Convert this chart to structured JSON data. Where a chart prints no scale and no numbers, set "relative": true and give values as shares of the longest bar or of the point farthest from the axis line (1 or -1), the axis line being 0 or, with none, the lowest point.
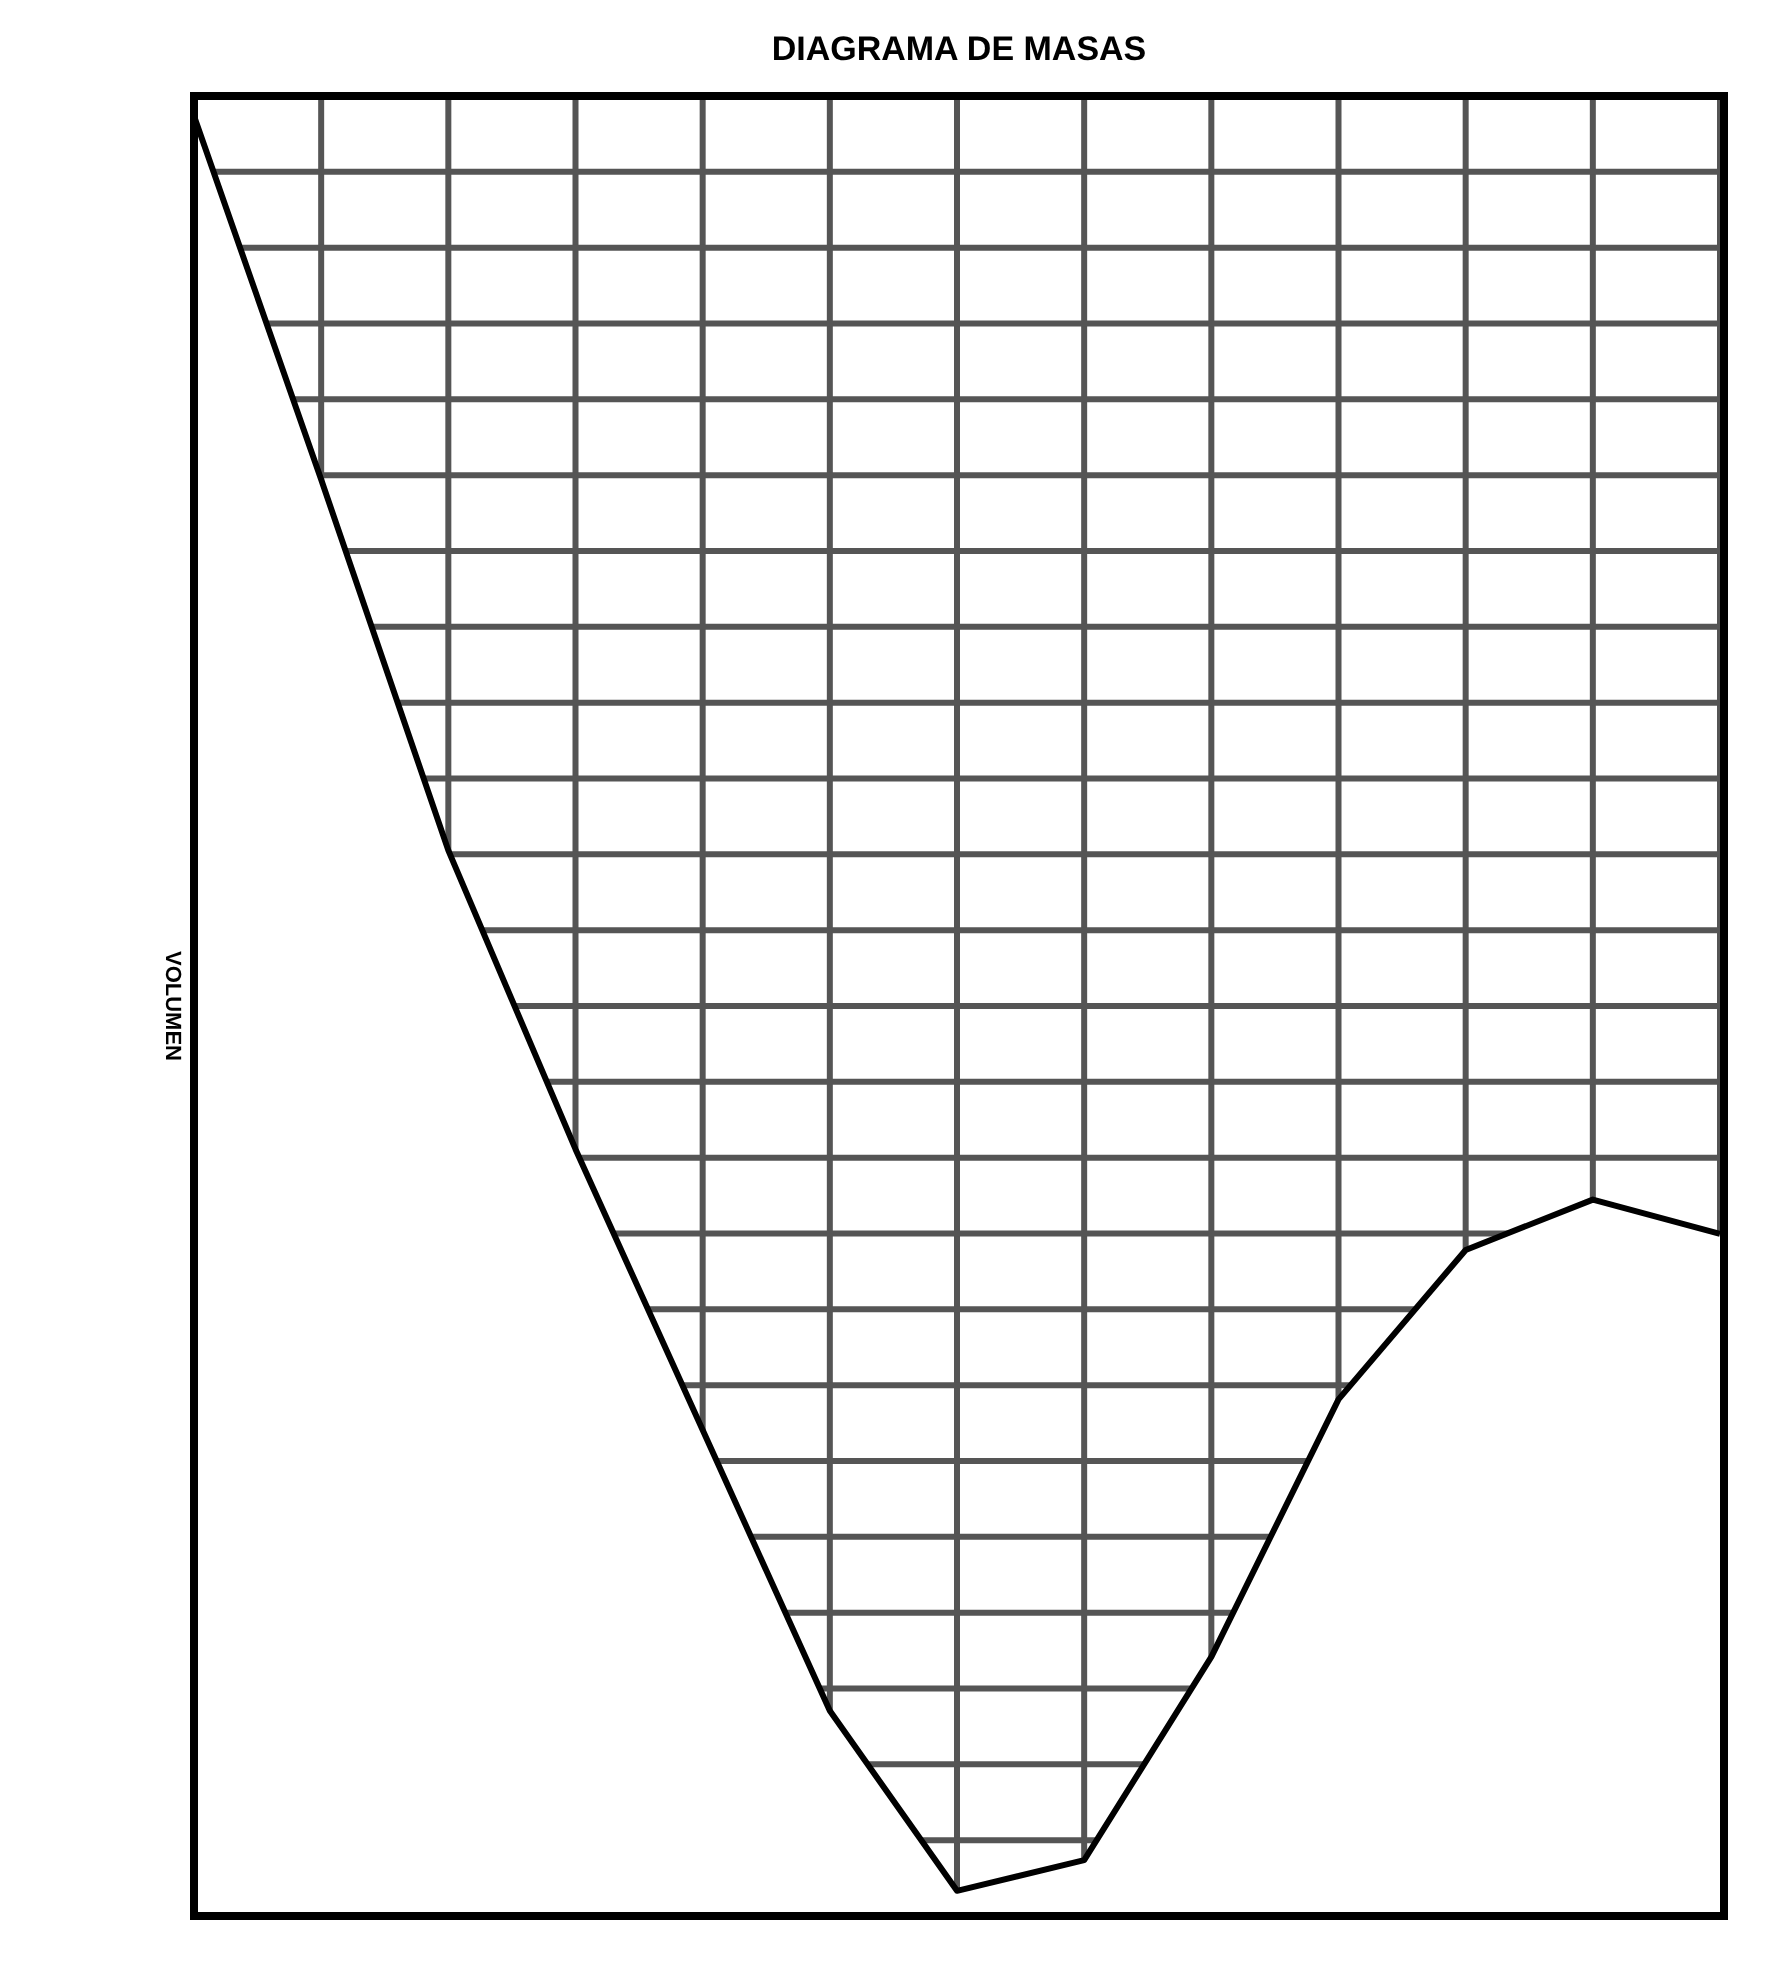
{
  "chart_data": {
    "type": "line",
    "title": "DIAGRAMA DE MASAS",
    "ylabel": "VOLUMEN",
    "relative": true,
    "categories": [
      null,
      null,
      null,
      null,
      null,
      null,
      null,
      null,
      null,
      null,
      null,
      null,
      null
    ],
    "series": [
      {
        "color": "#000000",
        "values": [
          1,
          0.798,
          0.592,
          0.426,
          0.27,
          0.114,
          0.014,
          0.031,
          0.144,
          0.287,
          0.37,
          0.398,
          0.379
        ]
      }
    ],
    "grid": true,
    "marker": "none",
    "line_style": "solid"
  }
}
